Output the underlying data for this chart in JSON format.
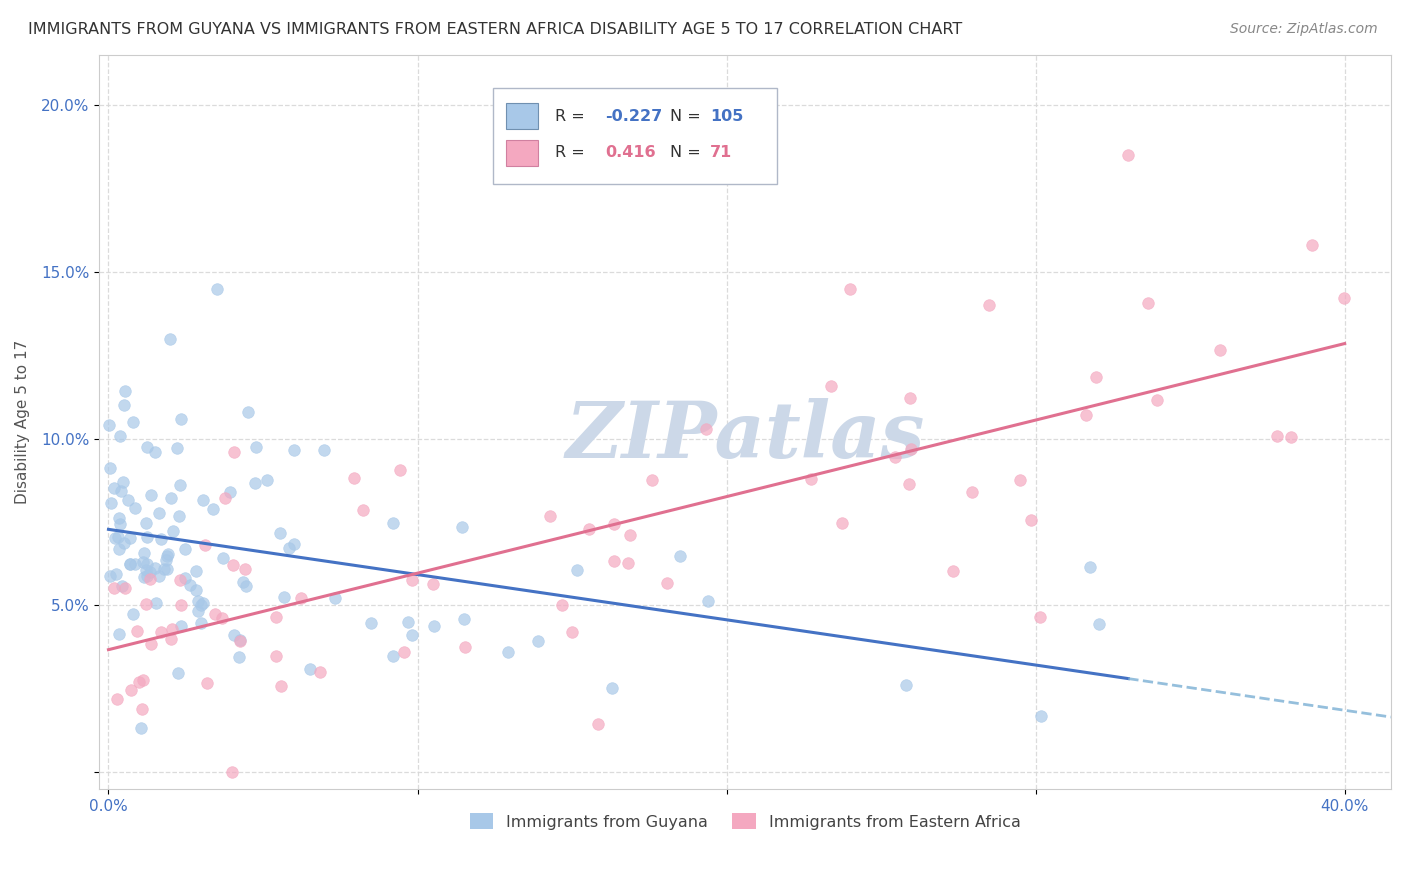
{
  "title": "IMMIGRANTS FROM GUYANA VS IMMIGRANTS FROM EASTERN AFRICA DISABILITY AGE 5 TO 17 CORRELATION CHART",
  "source": "Source: ZipAtlas.com",
  "ylabel": "Disability Age 5 to 17",
  "y_tick_labels": [
    "",
    "5.0%",
    "10.0%",
    "15.0%",
    "20.0%"
  ],
  "y_tick_values": [
    0.0,
    0.05,
    0.1,
    0.15,
    0.2
  ],
  "x_tick_labels": [
    "0.0%",
    "",
    "",
    "",
    "40.0%"
  ],
  "x_tick_values": [
    0.0,
    0.1,
    0.2,
    0.3,
    0.4
  ],
  "xlim": [
    -0.003,
    0.415
  ],
  "ylim": [
    -0.005,
    0.215
  ],
  "blue_color": "#a8c8e8",
  "pink_color": "#f4a8c0",
  "blue_line_color": "#4472c4",
  "pink_line_color": "#e07090",
  "blue_dash_color": "#7bafd4",
  "watermark_color": "#ccd8e8",
  "background_color": "#ffffff",
  "grid_color": "#d8d8d8",
  "legend_R1": "-0.227",
  "legend_N1": "105",
  "legend_R2": "0.416",
  "legend_N2": "71",
  "label1": "Immigrants from Guyana",
  "label2": "Immigrants from Eastern Africa",
  "blue_text_color": "#4472c4",
  "pink_text_color": "#e07090"
}
